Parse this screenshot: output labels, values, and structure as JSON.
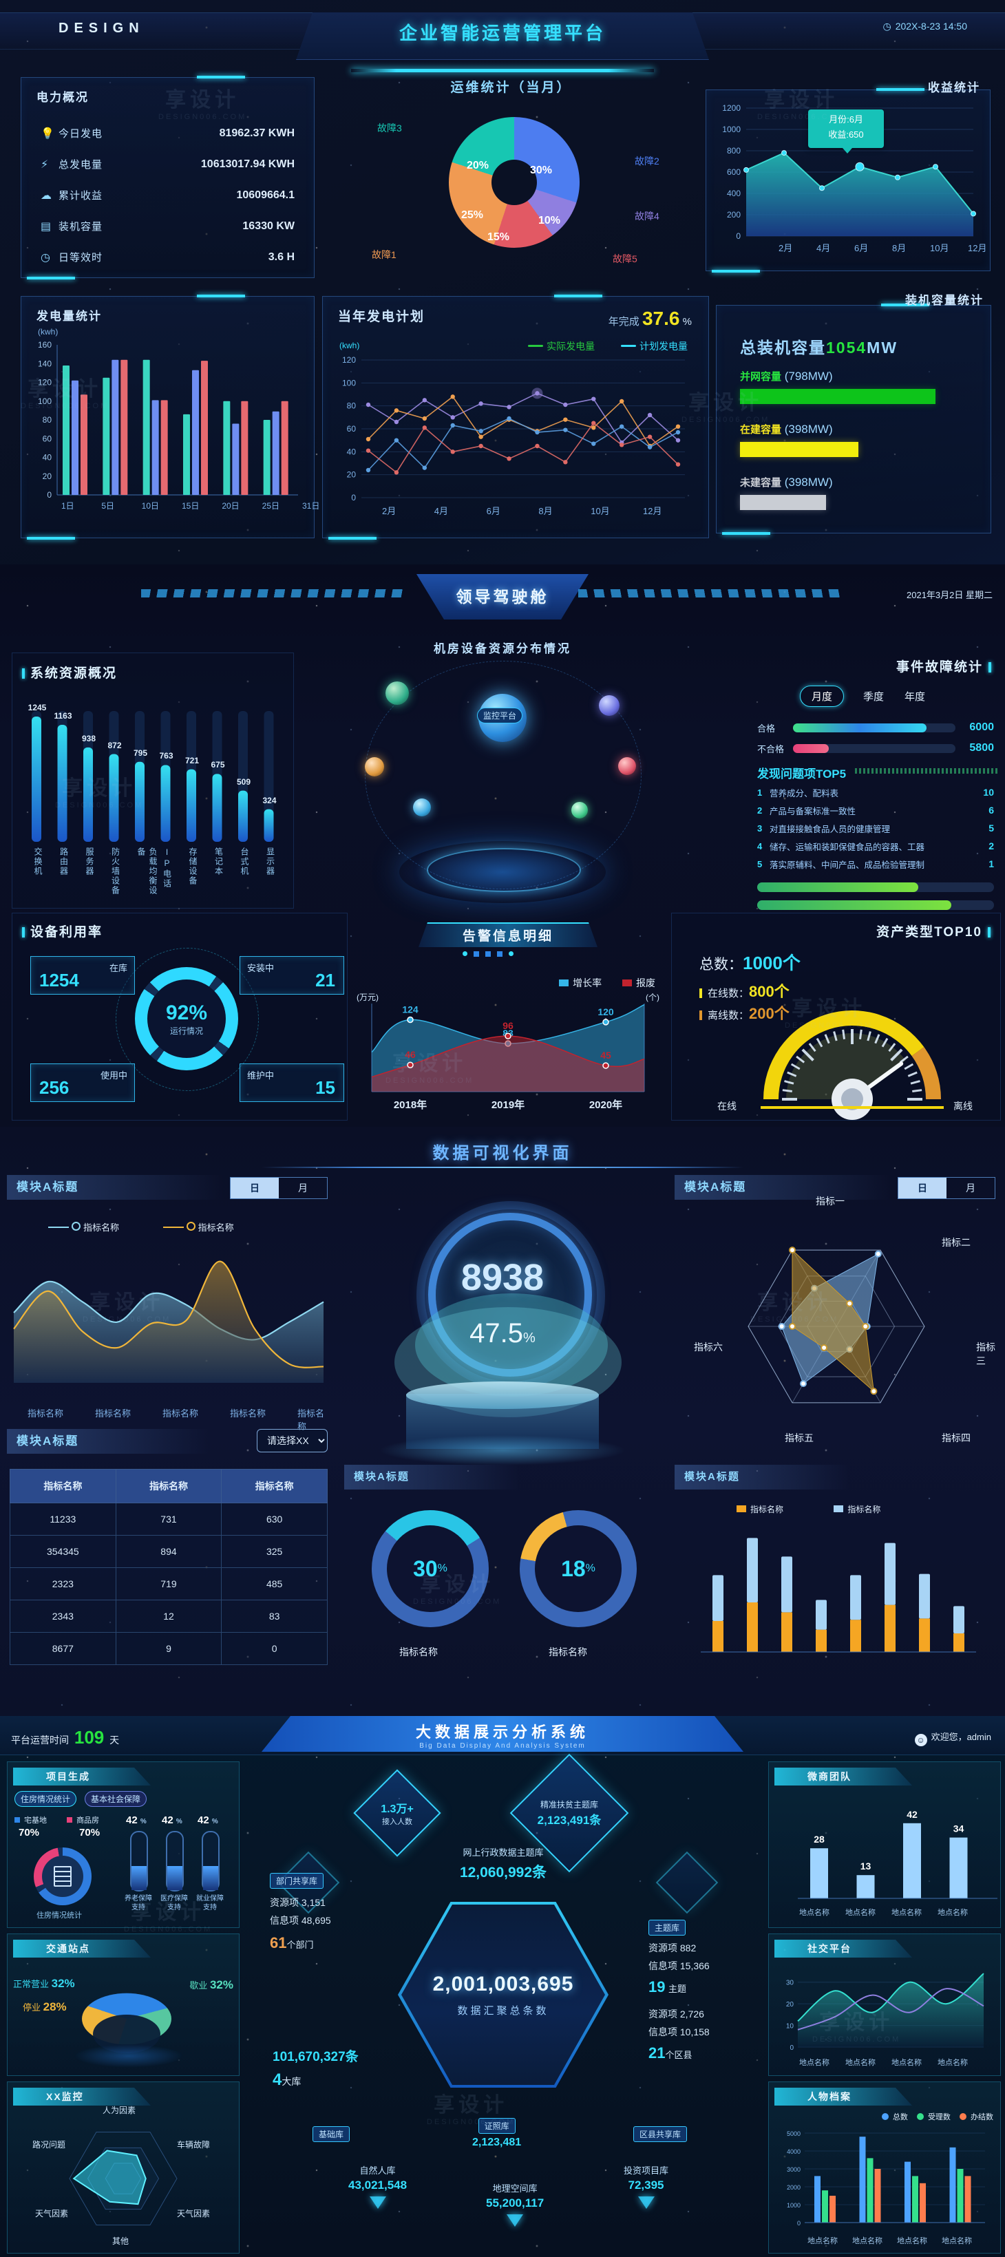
{
  "watermark": {
    "brand": "享设计",
    "domain": "DESIGN006.COM"
  },
  "s1": {
    "header": {
      "logo": "DESIGN",
      "title": "企业智能运营管理平台",
      "time": "202X-8-23 14:50",
      "clock_icon": "clock-icon"
    },
    "power": {
      "title": "电力概况",
      "items": [
        {
          "icon": "bulb-icon",
          "label": "今日发电",
          "value": "81962.37 KWH"
        },
        {
          "icon": "lightning-icon",
          "label": "总发电量",
          "value": "10613017.94 KWH"
        },
        {
          "icon": "cloud-icon",
          "label": "累计收益",
          "value": "10609664.1"
        },
        {
          "icon": "server-icon",
          "label": "装机容量",
          "value": "16330 KW"
        },
        {
          "icon": "clock-icon",
          "label": "日等效时",
          "value": "3.6 H"
        }
      ]
    },
    "ops": {
      "title": "运维统计（当月）"
    },
    "income": {
      "title": "收益统计",
      "tooltip_line1": "月份:6月",
      "tooltip_line2": "收益:650"
    },
    "gen": {
      "title": "发电量统计",
      "unit": "(kwh)"
    },
    "plan": {
      "title": "当年发电计划",
      "done_label": "年完成",
      "done_value": "37.6",
      "done_unit": "%",
      "unit": "(kwh)",
      "legend": [
        "实际发电量",
        "计划发电量"
      ]
    },
    "capacity": {
      "title": "装机容量统计",
      "total_label": "总装机容量",
      "total_value": "1054",
      "total_unit": "MW",
      "bars": [
        {
          "label": "并网容量",
          "value": "(798MW)"
        },
        {
          "label": "在建容量",
          "value": "(398MW)"
        },
        {
          "label": "未建容量",
          "value": "(398MW)"
        }
      ]
    }
  },
  "s2": {
    "title": "领导驾驶舱",
    "date": "2021年3月2日 星期二",
    "center_title": "机房设备资源分布情况",
    "center_label": "监控平台",
    "sys": {
      "title": "系统资源概况"
    },
    "event": {
      "title": "事件故障统计",
      "tabs": [
        "月度",
        "季度",
        "年度"
      ],
      "bar_labels": [
        "合格",
        "不合格"
      ],
      "bar_values": [
        "6000",
        "5800"
      ],
      "top_title": "发现问题项TOP5",
      "top5": [
        {
          "rank": "1",
          "text": "营养成分、配料表",
          "value": "10"
        },
        {
          "rank": "2",
          "text": "产品与备案标准一致性",
          "value": "6"
        },
        {
          "rank": "3",
          "text": "对直接接触食品人员的健康管理",
          "value": "5"
        },
        {
          "rank": "4",
          "text": "储存、运输和装卸保健食品的容器、工器",
          "value": "2"
        },
        {
          "rank": "5",
          "text": "落实原辅料、中间产品、成品检验管理制",
          "value": "1"
        }
      ]
    },
    "usage": {
      "title": "设备利用率",
      "percent": "92%",
      "percent_label": "运行情况",
      "stats": [
        {
          "label": "在库",
          "value": "1254"
        },
        {
          "label": "安装中",
          "value": "21"
        },
        {
          "label": "使用中",
          "value": "256"
        },
        {
          "label": "维护中",
          "value": "15"
        }
      ]
    },
    "alert": {
      "title": "告警信息明细",
      "legend": [
        "增长率",
        "报废"
      ],
      "unit_left": "(万元)",
      "unit_right": "(个)"
    },
    "asset": {
      "title": "资产类型TOP10",
      "total_label": "总数：",
      "total_value": "1000个",
      "online_label": "在线数：",
      "online_value": "800个",
      "offline_label": "离线数：",
      "offline_value": "200个",
      "gauge_left": "在线",
      "gauge_right": "离线"
    }
  },
  "s3": {
    "title": "数据可视化界面",
    "left": {
      "title": "模块A标题",
      "toggle": [
        "日",
        "月"
      ],
      "legend": [
        "指标名称",
        "指标名称"
      ],
      "xlabels": [
        "指标名称",
        "指标名称",
        "指标名称",
        "指标名称",
        "指标名称"
      ]
    },
    "gauge": {
      "value": "8938",
      "percent": "47.5",
      "percent_unit": "%"
    },
    "radar": {
      "title": "模块A标题",
      "toggle": [
        "日",
        "月"
      ],
      "axes": [
        "指标一",
        "指标二",
        "指标三",
        "指标四",
        "指标五",
        "指标六"
      ]
    },
    "table": {
      "title": "模块A标题",
      "select": "请选择XX",
      "headers": [
        "指标名称",
        "指标名称",
        "指标名称"
      ],
      "rows": [
        [
          "11233",
          "731",
          "630"
        ],
        [
          "354345",
          "894",
          "325"
        ],
        [
          "2323",
          "719",
          "485"
        ],
        [
          "2343",
          "12",
          "83"
        ],
        [
          "8677",
          "9",
          "0"
        ]
      ]
    },
    "donuts": {
      "title": "模块A标题",
      "items": [
        {
          "percent": "30",
          "label": "指标名称"
        },
        {
          "percent": "18",
          "label": "指标名称"
        }
      ]
    },
    "stacked": {
      "title": "模块A标题",
      "legend": [
        "指标名称",
        "指标名称"
      ]
    }
  },
  "s4": {
    "runtime_prefix": "平台运营时间",
    "runtime_value": "109",
    "runtime_suffix": "天",
    "title": "大数据展示分析系统",
    "subtitle": "Big Data Display And Analysis System",
    "welcome": "欢迎您，admin",
    "left1": {
      "title": "项目生成",
      "tabs": [
        "住房情况统计",
        "基本社会保障"
      ],
      "legend": [
        {
          "label": "宅基地",
          "value": "70%"
        },
        {
          "label": "商品房",
          "value": "70%"
        }
      ],
      "ring_caption": "住房情况统计",
      "gauges": [
        {
          "percent": "42",
          "unit": "%",
          "l1": "养老保障",
          "l2": "支持"
        },
        {
          "percent": "42",
          "unit": "%",
          "l1": "医疗保障",
          "l2": "支持"
        },
        {
          "percent": "42",
          "unit": "%",
          "l1": "就业保障",
          "l2": "支持"
        }
      ]
    },
    "left2": {
      "title": "交通站点",
      "labels": [
        {
          "name": "正常营业",
          "pct": "32%"
        },
        {
          "name": "歇业",
          "pct": "32%"
        },
        {
          "name": "停业",
          "pct": "28%"
        }
      ]
    },
    "left3": {
      "title": "XX监控",
      "axes": [
        "人为因素",
        "车辆故障",
        "天气因素",
        "其他",
        "天气因素",
        "路况问题"
      ]
    },
    "center": {
      "d_small_value": "1.3万+",
      "d_small_label": "接入人数",
      "d_big_label": "精准扶贫主题库",
      "d_big_value": "2,123,491条",
      "dept_label": "部门共享库",
      "dept_res": "资源项 3,151",
      "dept_info": "信息项 48,695",
      "dept_num": "61",
      "dept_suffix": "个部门",
      "net_label": "网上行政数据主题库",
      "net_value": "12,060,992条",
      "hex_value": "2,001,003,695",
      "hex_label": "数据汇聚总条数",
      "left_value": "101,670,327条",
      "left_num": "4",
      "left_suffix": "大库",
      "theme_label": "主题库",
      "theme_res": "资源项 882",
      "theme_info": "信息项 15,366",
      "theme_num": "19",
      "theme_suffix": "主题",
      "county_res": "资源项 2,726",
      "county_info": "信息项 10,158",
      "county_num": "21",
      "county_suffix": "个区县",
      "base_label": "基础库",
      "cert_label": "证照库",
      "cert_value": "2,123,481",
      "share_label": "区县共享库",
      "person_label": "自然人库",
      "person_value": "43,021,548",
      "geo_label": "地理空间库",
      "geo_value": "55,200,117",
      "invest_label": "投资项目库",
      "invest_value": "72,395"
    },
    "right1": {
      "title": "微商团队",
      "xlabels": [
        "地点名称",
        "地点名称",
        "地点名称",
        "地点名称"
      ]
    },
    "right2": {
      "title": "社交平台",
      "xlabels": [
        "地点名称",
        "地点名称",
        "地点名称",
        "地点名称"
      ]
    },
    "right3": {
      "title": "人物档案",
      "legend": [
        "总数",
        "受理数",
        "办结数"
      ],
      "xlabels": [
        "地点名称",
        "地点名称",
        "地点名称",
        "地点名称"
      ]
    }
  },
  "chart_data": [
    {
      "id": "ops_donut",
      "type": "pie",
      "title": "运维统计（当月）",
      "slices": [
        {
          "label": "故障2",
          "value": 30,
          "color": "#4d7df0"
        },
        {
          "label": "故障4",
          "value": 10,
          "color": "#8f7fe0"
        },
        {
          "label": "故障5",
          "value": 15,
          "color": "#e25964"
        },
        {
          "label": "故障1",
          "value": 25,
          "color": "#f09a52"
        },
        {
          "label": "故障3",
          "value": 20,
          "color": "#17c7b2"
        }
      ]
    },
    {
      "id": "income_area",
      "type": "area",
      "title": "收益统计",
      "x_ticks": [
        "2月",
        "4月",
        "6月",
        "8月",
        "10月",
        "12月"
      ],
      "values": [
        620,
        780,
        450,
        650,
        550,
        650,
        210
      ],
      "ylim": [
        0,
        1200
      ],
      "yticks": [
        0,
        200,
        400,
        600,
        800,
        1000,
        1200
      ],
      "color": "#1fc3b4"
    },
    {
      "id": "gen_bars",
      "type": "bar",
      "title": "发电量统计",
      "unit": "(kwh)",
      "ylim": [
        0,
        160
      ],
      "yticks": [
        0,
        20,
        40,
        60,
        80,
        100,
        120,
        140,
        160
      ],
      "axis_labels": [
        "1日",
        "5日",
        "10日",
        "15日",
        "20日",
        "25日",
        "31日"
      ],
      "series": [
        {
          "name": "s1",
          "color": "#3ad6c0",
          "values": [
            138,
            125,
            144,
            86,
            100,
            80
          ]
        },
        {
          "name": "s2",
          "color": "#6f8ef2",
          "values": [
            122,
            144,
            101,
            133,
            76,
            89
          ]
        },
        {
          "name": "s3",
          "color": "#e66a70",
          "values": [
            107,
            144,
            101,
            143,
            100,
            100
          ]
        }
      ]
    },
    {
      "id": "plan_lines",
      "type": "line",
      "title": "当年发电计划",
      "done_percent": 37.6,
      "unit": "(kwh)",
      "ylim": [
        0,
        120
      ],
      "yticks": [
        0,
        20,
        40,
        60,
        80,
        100,
        120
      ],
      "x_ticks": [
        "2月",
        "4月",
        "6月",
        "8月",
        "10月",
        "12月"
      ],
      "legend": [
        "实际发电量",
        "计划发电量"
      ],
      "series": [
        {
          "name": "purple",
          "color": "#9b8ae0",
          "values": [
            81,
            66,
            85,
            70,
            82,
            79,
            91,
            81,
            86,
            48,
            72,
            50
          ]
        },
        {
          "name": "orange",
          "color": "#f0a050",
          "values": [
            51,
            76,
            69,
            88,
            53,
            68,
            58,
            68,
            61,
            84,
            45,
            62
          ]
        },
        {
          "name": "blue",
          "color": "#5b9fe0",
          "values": [
            24,
            50,
            26,
            63,
            58,
            69,
            57,
            59,
            47,
            62,
            44,
            57
          ]
        },
        {
          "name": "red",
          "color": "#e06a66",
          "values": [
            41,
            22,
            61,
            40,
            45,
            34,
            45,
            31,
            65,
            46,
            53,
            29
          ]
        }
      ]
    },
    {
      "id": "capacity_bars",
      "type": "bar",
      "title": "装机容量统计",
      "total_mw": 1054,
      "bars": [
        {
          "label": "并网容量",
          "mw": 798,
          "pct": 0.86,
          "color": "#0dc41a"
        },
        {
          "label": "在建容量",
          "mw": 398,
          "pct": 0.52,
          "color": "#f2ee0c"
        },
        {
          "label": "未建容量",
          "mw": 398,
          "pct": 0.38,
          "color": "#c9cdd4"
        }
      ]
    },
    {
      "id": "sys_bars",
      "type": "bar",
      "title": "系统资源概况",
      "categories": [
        "交换机",
        "路由器",
        "服务器",
        "防火墙设备",
        "负载均衡设备",
        "IP电话",
        "存储设备",
        "笔记本",
        "台式机",
        "显示器"
      ],
      "values": [
        1245,
        1163,
        938,
        872,
        795,
        763,
        721,
        675,
        509,
        324
      ],
      "ylim": [
        0,
        1400
      ]
    },
    {
      "id": "event_bars",
      "type": "bar",
      "title": "事件故障统计",
      "bars": [
        {
          "label": "合格",
          "value": 6000,
          "pct": 0.82
        },
        {
          "label": "不合格",
          "value": 5800,
          "pct": 0.22
        }
      ],
      "top5_values": [
        10,
        6,
        5,
        2,
        1
      ],
      "bottom_bars_pct": [
        0.68,
        0.82
      ]
    },
    {
      "id": "usage_donut",
      "type": "pie",
      "title": "设备利用率",
      "percent": 92,
      "stats": {
        "在库": 1254,
        "安装中": 21,
        "使用中": 256,
        "维护中": 15
      }
    },
    {
      "id": "alert_lines",
      "type": "line",
      "title": "告警信息明细",
      "x": [
        "2018年",
        "2019年",
        "2020年"
      ],
      "series": [
        {
          "name": "增长率",
          "color": "#35b5e8",
          "values": [
            124,
            83,
            120
          ]
        },
        {
          "name": "报废",
          "color": "#c2232e",
          "values": [
            46,
            96,
            45
          ]
        }
      ],
      "unit_left": "万元",
      "unit_right": "个"
    },
    {
      "id": "asset_gauge",
      "type": "pie",
      "title": "资产类型TOP10",
      "total": 1000,
      "online": 800,
      "offline": 200
    },
    {
      "id": "mA_area",
      "type": "area",
      "title": "模块A标题",
      "series": [
        {
          "name": "指标名称",
          "color": "#8fd8f0",
          "values": [
            52,
            75,
            60,
            45,
            66,
            58,
            40,
            32,
            45,
            60
          ]
        },
        {
          "name": "指标名称",
          "color": "#f0b63a",
          "values": [
            40,
            68,
            38,
            26,
            44,
            46,
            90,
            40,
            14,
            12
          ]
        }
      ],
      "x_labels": [
        "指标名称",
        "指标名称",
        "指标名称",
        "指标名称",
        "指标名称"
      ]
    },
    {
      "id": "mA_gauge",
      "type": "pie",
      "value": 8938,
      "percent": 47.5
    },
    {
      "id": "mA_radar",
      "type": "scatter",
      "axes": [
        "指标一",
        "指标二",
        "指标三",
        "指标四",
        "指标五",
        "指标六"
      ],
      "series": [
        {
          "color": "#7fb6e8",
          "values": [
            0.62,
            0.5,
            0.95,
            0.35,
            0.3,
            0.75
          ]
        },
        {
          "color": "#c9992e",
          "values": [
            0.5,
            1.0,
            0.3,
            0.33,
            0.85,
            0.28
          ]
        }
      ]
    },
    {
      "id": "mA_donuts",
      "type": "pie",
      "values": [
        30,
        18
      ],
      "colors": [
        "#29c5e6",
        "#f5b63c"
      ],
      "ring": "#3a67b8"
    },
    {
      "id": "mA_stacked",
      "type": "bar",
      "ylim": [
        0,
        100
      ],
      "series": [
        {
          "name": "指标名称",
          "color": "#f5a623",
          "values": [
            25,
            40,
            32,
            18,
            26,
            38,
            27,
            15
          ]
        },
        {
          "name": "指标名称",
          "color": "#a8d4f5",
          "values": [
            37,
            52,
            45,
            24,
            36,
            50,
            36,
            22
          ]
        }
      ]
    },
    {
      "id": "proj_ring",
      "type": "pie",
      "slices": [
        {
          "label": "宅基地",
          "value": 70,
          "color": "#2f7de0"
        },
        {
          "label": "商品房",
          "value": 70,
          "color": "#e8417a"
        }
      ]
    },
    {
      "id": "proj_gauges",
      "type": "bar",
      "values": [
        42,
        42,
        42
      ]
    },
    {
      "id": "traffic_pie",
      "type": "pie",
      "slices": [
        {
          "label": "正常营业",
          "value": 32,
          "color": "#2e86e8"
        },
        {
          "label": "歇业",
          "value": 32,
          "color": "#57c7a0"
        },
        {
          "label": "停业",
          "value": 28,
          "color": "#f0b63c"
        }
      ]
    },
    {
      "id": "monitor_radar",
      "type": "scatter",
      "values": [
        0.92,
        0.6,
        0.5,
        0.42,
        0.55,
        0.5
      ],
      "color": "#35d8f0"
    },
    {
      "id": "ws_bars",
      "type": "bar",
      "values": [
        28,
        13,
        42,
        34
      ],
      "ylim": [
        0,
        50
      ],
      "color": "#9fd4ff"
    },
    {
      "id": "sj_lines",
      "type": "line",
      "yticks": [
        0,
        10,
        20,
        30
      ],
      "series": [
        {
          "color": "#35e0d0",
          "values": [
            12,
            26,
            16,
            30,
            20,
            34
          ]
        },
        {
          "color": "#8f7fe0",
          "values": [
            8,
            14,
            24,
            16,
            27,
            19
          ]
        }
      ]
    },
    {
      "id": "rw_bars",
      "type": "bar",
      "ylim": [
        0,
        5000
      ],
      "yticks": [
        0,
        1000,
        2000,
        3000,
        4000,
        5000
      ],
      "series": [
        {
          "name": "总数",
          "color": "#4da3ff",
          "values": [
            2600,
            4800,
            3400,
            4200
          ]
        },
        {
          "name": "受理数",
          "color": "#35e08c",
          "values": [
            1800,
            3600,
            2600,
            3000
          ]
        },
        {
          "name": "办结数",
          "color": "#ff7d4d",
          "values": [
            1500,
            3000,
            2200,
            2600
          ]
        }
      ]
    }
  ]
}
